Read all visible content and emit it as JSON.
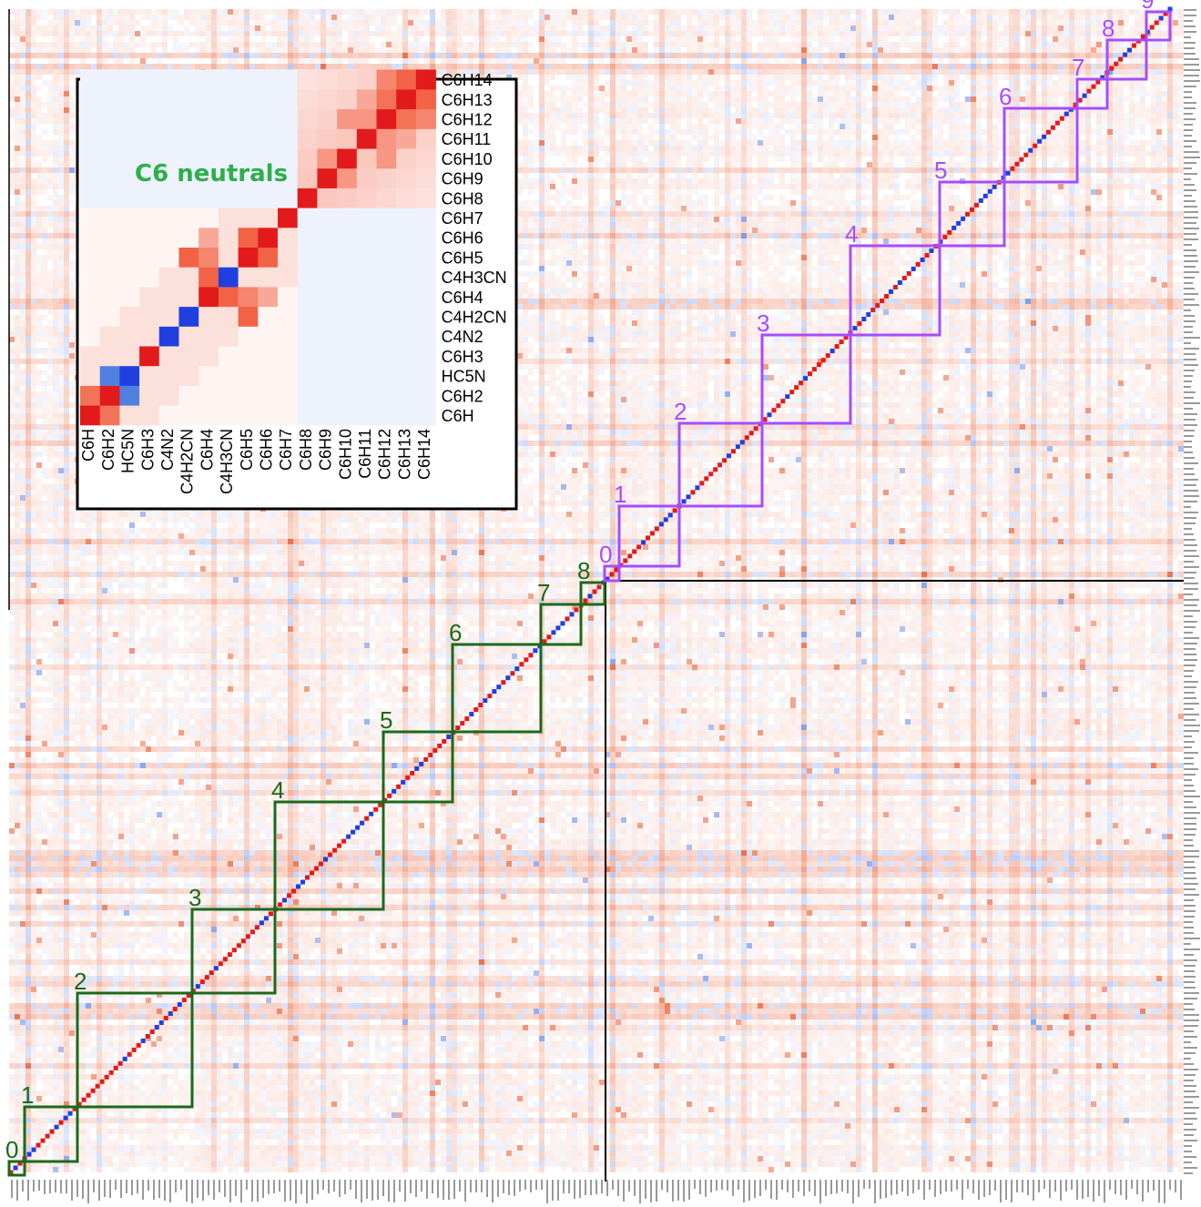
{
  "chart_data": [
    {
      "type": "heatmap",
      "title": "",
      "description_note": "",
      "colors": {
        "positive": "#e31a1c",
        "negative": "#1f3fe0",
        "neutral": "#ffffff",
        "neutral_boxes": "#1a6a1a",
        "ion_boxes": "#a64dff"
      },
      "neutral_groups": [
        {
          "label": "0",
          "color": "#1a6a1a"
        },
        {
          "label": "1",
          "color": "#1a6a1a"
        },
        {
          "label": "2",
          "color": "#1a6a1a"
        },
        {
          "label": "3",
          "color": "#1a6a1a"
        },
        {
          "label": "4",
          "color": "#1a6a1a"
        },
        {
          "label": "5",
          "color": "#1a6a1a"
        },
        {
          "label": "6",
          "color": "#1a6a1a"
        },
        {
          "label": "7",
          "color": "#1a6a1a"
        },
        {
          "label": "8",
          "color": "#1a6a1a"
        }
      ],
      "ion_groups": [
        {
          "label": "0"
        },
        {
          "label": "1"
        },
        {
          "label": "2"
        },
        {
          "label": "3"
        },
        {
          "label": "4"
        },
        {
          "label": "5"
        },
        {
          "label": "6"
        },
        {
          "label": "7"
        },
        {
          "label": "8"
        },
        {
          "label": "9"
        }
      ]
    },
    {
      "type": "heatmap",
      "title": "C6 neutrals",
      "labels": [
        "C6H",
        "C6H2",
        "HC5N",
        "C6H3",
        "C4N2",
        "C4H2CN",
        "C6H4",
        "C4H3CN",
        "C6H5",
        "C6H6",
        "C6H7",
        "C6H8",
        "C6H9",
        "C6H10",
        "C6H11",
        "C6H12",
        "C6H13",
        "C6H14"
      ],
      "diagonal_sign": [
        1,
        1,
        -1,
        1,
        -1,
        -1,
        1,
        -1,
        1,
        1,
        1,
        1,
        1,
        1,
        1,
        1,
        1,
        1
      ],
      "strong_offdiagonal": [
        {
          "row": "C6H2",
          "col": "C6H",
          "value": 0.8
        },
        {
          "row": "HC5N",
          "col": "C6H2",
          "value": -0.9
        },
        {
          "row": "C6H4",
          "col": "C4H3CN",
          "value": 0.9
        },
        {
          "row": "C6H5",
          "col": "C6H4",
          "value": 0.7
        },
        {
          "row": "C6H6",
          "col": "C6H5",
          "value": 0.9
        },
        {
          "row": "C6H5",
          "col": "C4H2CN",
          "value": 0.9
        },
        {
          "row": "C6H6",
          "col": "C6H4",
          "value": 0.5
        },
        {
          "row": "C6H10",
          "col": "C6H9",
          "value": 0.6
        },
        {
          "row": "C6H12",
          "col": "C6H11",
          "value": 0.6
        },
        {
          "row": "C6H13",
          "col": "C6H12",
          "value": 0.8
        },
        {
          "row": "C6H14",
          "col": "C6H13",
          "value": 0.9
        },
        {
          "row": "C6H13",
          "col": "C6H14",
          "value": 0.9
        },
        {
          "row": "C6H14",
          "col": "C6H12",
          "value": 0.7
        },
        {
          "row": "C6H12",
          "col": "C6H10",
          "value": 0.6
        },
        {
          "row": "C6H13",
          "col": "C6H11",
          "value": 0.5
        }
      ]
    }
  ]
}
